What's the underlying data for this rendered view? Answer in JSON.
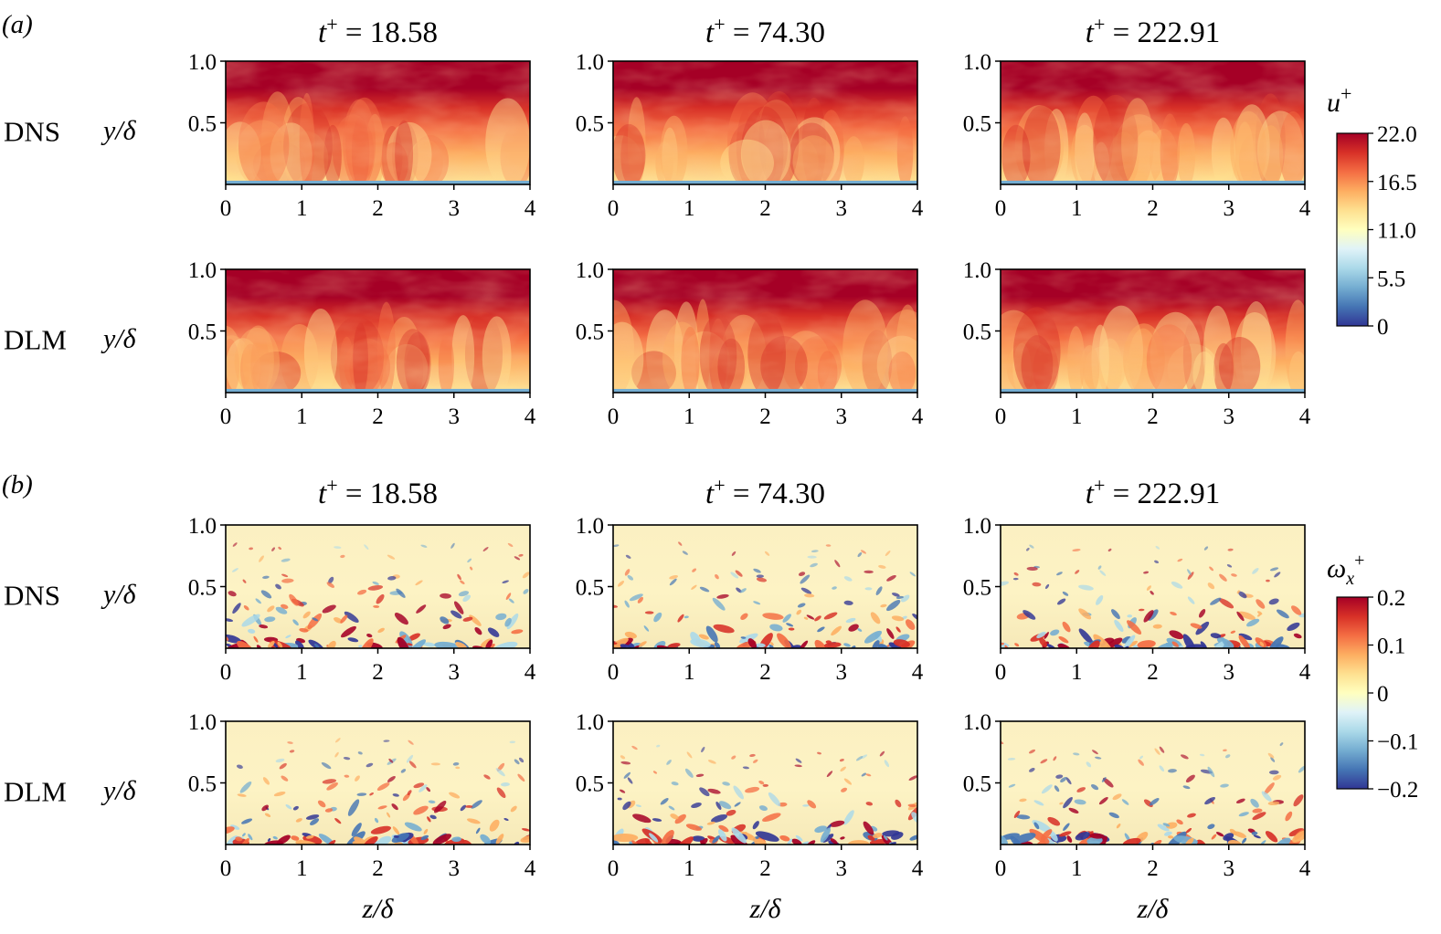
{
  "panels": [
    {
      "label": "(a)",
      "row_titles": [
        "DNS",
        "DLM"
      ],
      "times": [
        "18.58",
        "74.30",
        "222.91"
      ],
      "colorbar": {
        "label": "u⁺",
        "ticks": [
          "22.0",
          "16.5",
          "11.0",
          "5.5",
          "0"
        ],
        "colormap": [
          "#313695",
          "#4575b4",
          "#74add1",
          "#abd9e9",
          "#e0f3f8",
          "#ffffbf",
          "#fee090",
          "#fdae61",
          "#f46d43",
          "#d73027",
          "#a50026"
        ]
      }
    },
    {
      "label": "(b)",
      "row_titles": [
        "DNS",
        "DLM"
      ],
      "times": [
        "18.58",
        "74.30",
        "222.91"
      ],
      "colorbar": {
        "label": "ωx⁺",
        "ticks": [
          "0.2",
          "0.1",
          "0",
          "−0.1",
          "−0.2"
        ],
        "colormap": [
          "#313695",
          "#4575b4",
          "#74add1",
          "#abd9e9",
          "#e0f3f8",
          "#ffffbf",
          "#fee090",
          "#fdae61",
          "#f46d43",
          "#d73027",
          "#a50026"
        ]
      }
    }
  ],
  "axes": {
    "ylabel": "y/δ",
    "xlabel": "z/δ",
    "yticks": [
      "1.0",
      "0.5"
    ],
    "xticks": [
      "0",
      "1",
      "2",
      "3",
      "4"
    ],
    "xlim": [
      0,
      4
    ],
    "ylim": [
      0,
      1.0
    ]
  },
  "title_prefix": "t",
  "title_sup": "+",
  "title_eq": " = "
}
